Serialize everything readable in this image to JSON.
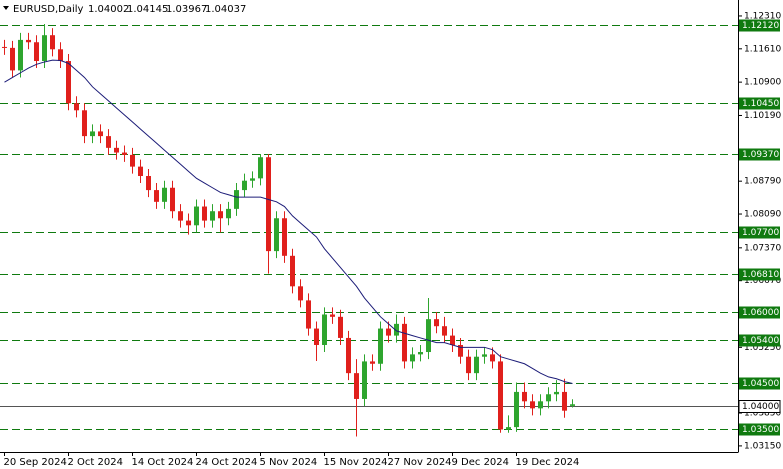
{
  "chart_data": {
    "type": "candlestick",
    "title": "EURUSD,Daily",
    "categories": [
      "20 Sep 2024",
      null,
      null,
      null,
      null,
      null,
      null,
      null,
      "2 Oct 2024",
      null,
      null,
      null,
      null,
      null,
      null,
      null,
      "14 Oct 2024",
      null,
      null,
      null,
      null,
      null,
      null,
      null,
      "24 Oct 2024",
      null,
      null,
      null,
      null,
      null,
      null,
      null,
      "5 Nov 2024",
      null,
      null,
      null,
      null,
      null,
      null,
      null,
      "15 Nov 2024",
      null,
      null,
      null,
      null,
      null,
      null,
      null,
      "27 Nov 2024",
      null,
      null,
      null,
      null,
      null,
      null,
      null,
      "9 Dec 2024",
      null,
      null,
      null,
      null,
      null,
      null,
      null,
      "19 Dec 2024",
      null,
      null,
      null,
      null,
      null,
      null,
      null
    ],
    "open": [
      1.1165,
      1.1163,
      1.1115,
      1.118,
      1.1175,
      1.1135,
      1.119,
      1.116,
      1.1135,
      1.1045,
      1.103,
      1.0975,
      1.0985,
      1.0975,
      1.095,
      1.094,
      1.0935,
      1.091,
      1.089,
      1.086,
      1.0835,
      1.0865,
      1.0815,
      1.0795,
      1.0785,
      1.0825,
      1.0795,
      1.0815,
      1.08,
      1.082,
      1.086,
      1.088,
      1.0885,
      1.093,
      1.073,
      1.08,
      1.072,
      1.0655,
      1.0625,
      1.0565,
      1.053,
      1.0595,
      1.059,
      1.0545,
      1.047,
      1.0415,
      1.0495,
      1.049,
      1.0565,
      1.055,
      1.0575,
      1.0495,
      1.051,
      1.0515,
      1.0585,
      1.057,
      1.055,
      1.053,
      1.0505,
      1.047,
      1.0505,
      1.051,
      1.0495,
      1.035,
      1.0355,
      1.043,
      1.041,
      1.0395,
      1.041,
      1.0425,
      1.043,
      1.04002
    ],
    "high": [
      1.118,
      1.1178,
      1.1195,
      1.1195,
      1.119,
      1.1214,
      1.1205,
      1.1175,
      1.115,
      1.106,
      1.1045,
      1.1,
      1.1,
      1.099,
      1.0965,
      1.0955,
      1.095,
      1.0925,
      1.0905,
      1.0875,
      1.088,
      1.088,
      1.083,
      1.081,
      1.084,
      1.084,
      1.083,
      1.083,
      1.0835,
      1.0875,
      1.0895,
      1.09,
      1.0937,
      1.0937,
      1.0815,
      1.0815,
      1.0735,
      1.067,
      1.064,
      1.058,
      1.061,
      1.061,
      1.0605,
      1.056,
      1.05,
      1.051,
      1.051,
      1.058,
      1.058,
      1.0595,
      1.059,
      1.0525,
      1.053,
      1.063,
      1.06,
      1.059,
      1.0565,
      1.0545,
      1.052,
      1.052,
      1.0525,
      1.0525,
      1.051,
      1.038,
      1.045,
      1.045,
      1.0425,
      1.0425,
      1.044,
      1.0455,
      1.0458,
      1.04145
    ],
    "low": [
      1.1148,
      1.11,
      1.11,
      1.116,
      1.112,
      1.112,
      1.1145,
      1.112,
      1.103,
      1.1015,
      1.096,
      1.096,
      1.096,
      1.0935,
      1.0925,
      1.092,
      1.0895,
      1.0875,
      1.0845,
      1.082,
      1.082,
      1.08,
      1.078,
      1.0765,
      1.077,
      1.078,
      1.078,
      1.077,
      1.0785,
      1.0805,
      1.0845,
      1.0865,
      1.087,
      1.0682,
      1.0715,
      1.0705,
      1.064,
      1.061,
      1.055,
      1.0496,
      1.0515,
      1.0575,
      1.053,
      1.0455,
      1.0335,
      1.04,
      1.0475,
      1.0475,
      1.0535,
      1.0535,
      1.048,
      1.048,
      1.0495,
      1.05,
      1.0555,
      1.0535,
      1.0515,
      1.049,
      1.0455,
      1.0455,
      1.049,
      1.048,
      1.0343,
      1.0343,
      1.0345,
      1.0395,
      1.038,
      1.038,
      1.0395,
      1.041,
      1.0375,
      1.03967
    ],
    "close": [
      1.1163,
      1.1115,
      1.118,
      1.1175,
      1.1135,
      1.119,
      1.116,
      1.1135,
      1.1045,
      1.103,
      1.0975,
      1.0985,
      1.0975,
      1.095,
      1.094,
      1.0935,
      1.091,
      1.089,
      1.086,
      1.0835,
      1.0865,
      1.0815,
      1.0795,
      1.0785,
      1.0825,
      1.0795,
      1.0815,
      1.08,
      1.082,
      1.086,
      1.088,
      1.0885,
      1.093,
      1.073,
      1.08,
      1.072,
      1.0655,
      1.0625,
      1.0565,
      1.053,
      1.0595,
      1.059,
      1.0545,
      1.047,
      1.0415,
      1.0495,
      1.049,
      1.0565,
      1.055,
      1.0575,
      1.0495,
      1.051,
      1.0515,
      1.0585,
      1.057,
      1.055,
      1.053,
      1.0505,
      1.047,
      1.0505,
      1.051,
      1.0495,
      1.035,
      1.0355,
      1.043,
      1.041,
      1.0395,
      1.041,
      1.0425,
      1.043,
      1.039,
      1.04037
    ],
    "up_color": "#2ea52e",
    "down_color": "#e0201c",
    "ma": {
      "color": "#1c1c78",
      "values": [
        1.109,
        1.11,
        1.111,
        1.112,
        1.1128,
        1.1133,
        1.1137,
        1.1136,
        1.113,
        1.1115,
        1.11,
        1.108,
        1.1065,
        1.105,
        1.1035,
        1.102,
        1.1005,
        1.099,
        1.0975,
        1.096,
        1.0945,
        1.093,
        1.0915,
        1.09,
        1.0885,
        1.0875,
        1.0865,
        1.0855,
        1.085,
        1.0845,
        1.0845,
        1.0845,
        1.0845,
        1.084,
        1.0835,
        1.0825,
        1.0805,
        1.079,
        1.0775,
        1.076,
        1.0735,
        1.0715,
        1.0695,
        1.0675,
        1.0655,
        1.063,
        1.061,
        1.059,
        1.0575,
        1.056,
        1.0555,
        1.055,
        1.0545,
        1.054,
        1.0535,
        1.0535,
        1.053,
        1.0525,
        1.0525,
        1.0525,
        1.0525,
        1.052,
        1.0505,
        1.05,
        1.0495,
        1.049,
        1.048,
        1.047,
        1.0462,
        1.0458,
        1.0452,
        1.0448
      ]
    },
    "ylim": [
      1.0302,
      1.1265
    ],
    "yticks": [
      {
        "value": 1.1231,
        "label": "1.12310"
      },
      {
        "value": 1.1161,
        "label": "1.11610"
      },
      {
        "value": 1.109,
        "label": "1.10900"
      },
      {
        "value": 1.1019,
        "label": "1.10190"
      },
      {
        "value": 1.0879,
        "label": "1.08790"
      },
      {
        "value": 1.0809,
        "label": "1.08090"
      },
      {
        "value": 1.0737,
        "label": "1.07370"
      },
      {
        "value": 1.0667,
        "label": "1.06670"
      },
      {
        "value": 1.0525,
        "label": "1.05250"
      },
      {
        "value": 1.0385,
        "label": "1.03850"
      },
      {
        "value": 1.0315,
        "label": "1.03150"
      }
    ],
    "level_color": "#0f7a0f",
    "levels": [
      {
        "value": 1.1212,
        "label": "1.12120"
      },
      {
        "value": 1.1045,
        "label": "1.10450"
      },
      {
        "value": 1.0937,
        "label": "1.09370"
      },
      {
        "value": 1.077,
        "label": "1.07700"
      },
      {
        "value": 1.0681,
        "label": "1.06810"
      },
      {
        "value": 1.06,
        "label": "1.06000"
      },
      {
        "value": 1.054,
        "label": "1.05400"
      },
      {
        "value": 1.045,
        "label": "1.04500"
      },
      {
        "value": 1.035,
        "label": "1.03500"
      }
    ],
    "price_line": {
      "value": 1.04,
      "label": "1.04000"
    }
  }
}
